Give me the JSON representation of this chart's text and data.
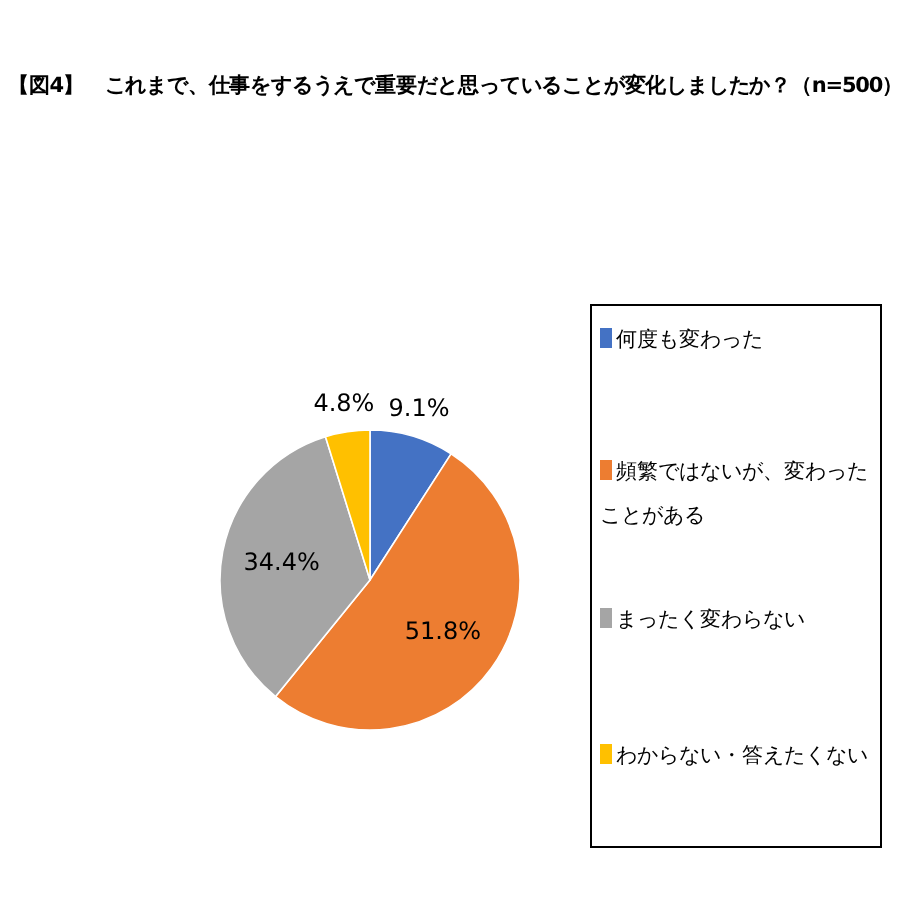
{
  "chart_data": {
    "type": "pie",
    "title": "【図4】　これまで、仕事をするうえで重要だと思っていることが変化しましたか？（n=500）",
    "categories": [
      "何度も変わった",
      "頻繁ではないが、変わったことがある",
      "まったく変わらない",
      "わからない・答えたくない"
    ],
    "values": [
      9.1,
      51.8,
      34.4,
      4.8
    ],
    "value_labels": [
      "9.1%",
      "51.8%",
      "34.4%",
      "4.8%"
    ],
    "colors": [
      "#4472c4",
      "#ed7d31",
      "#a5a5a5",
      "#ffc000"
    ],
    "legend": "right"
  }
}
